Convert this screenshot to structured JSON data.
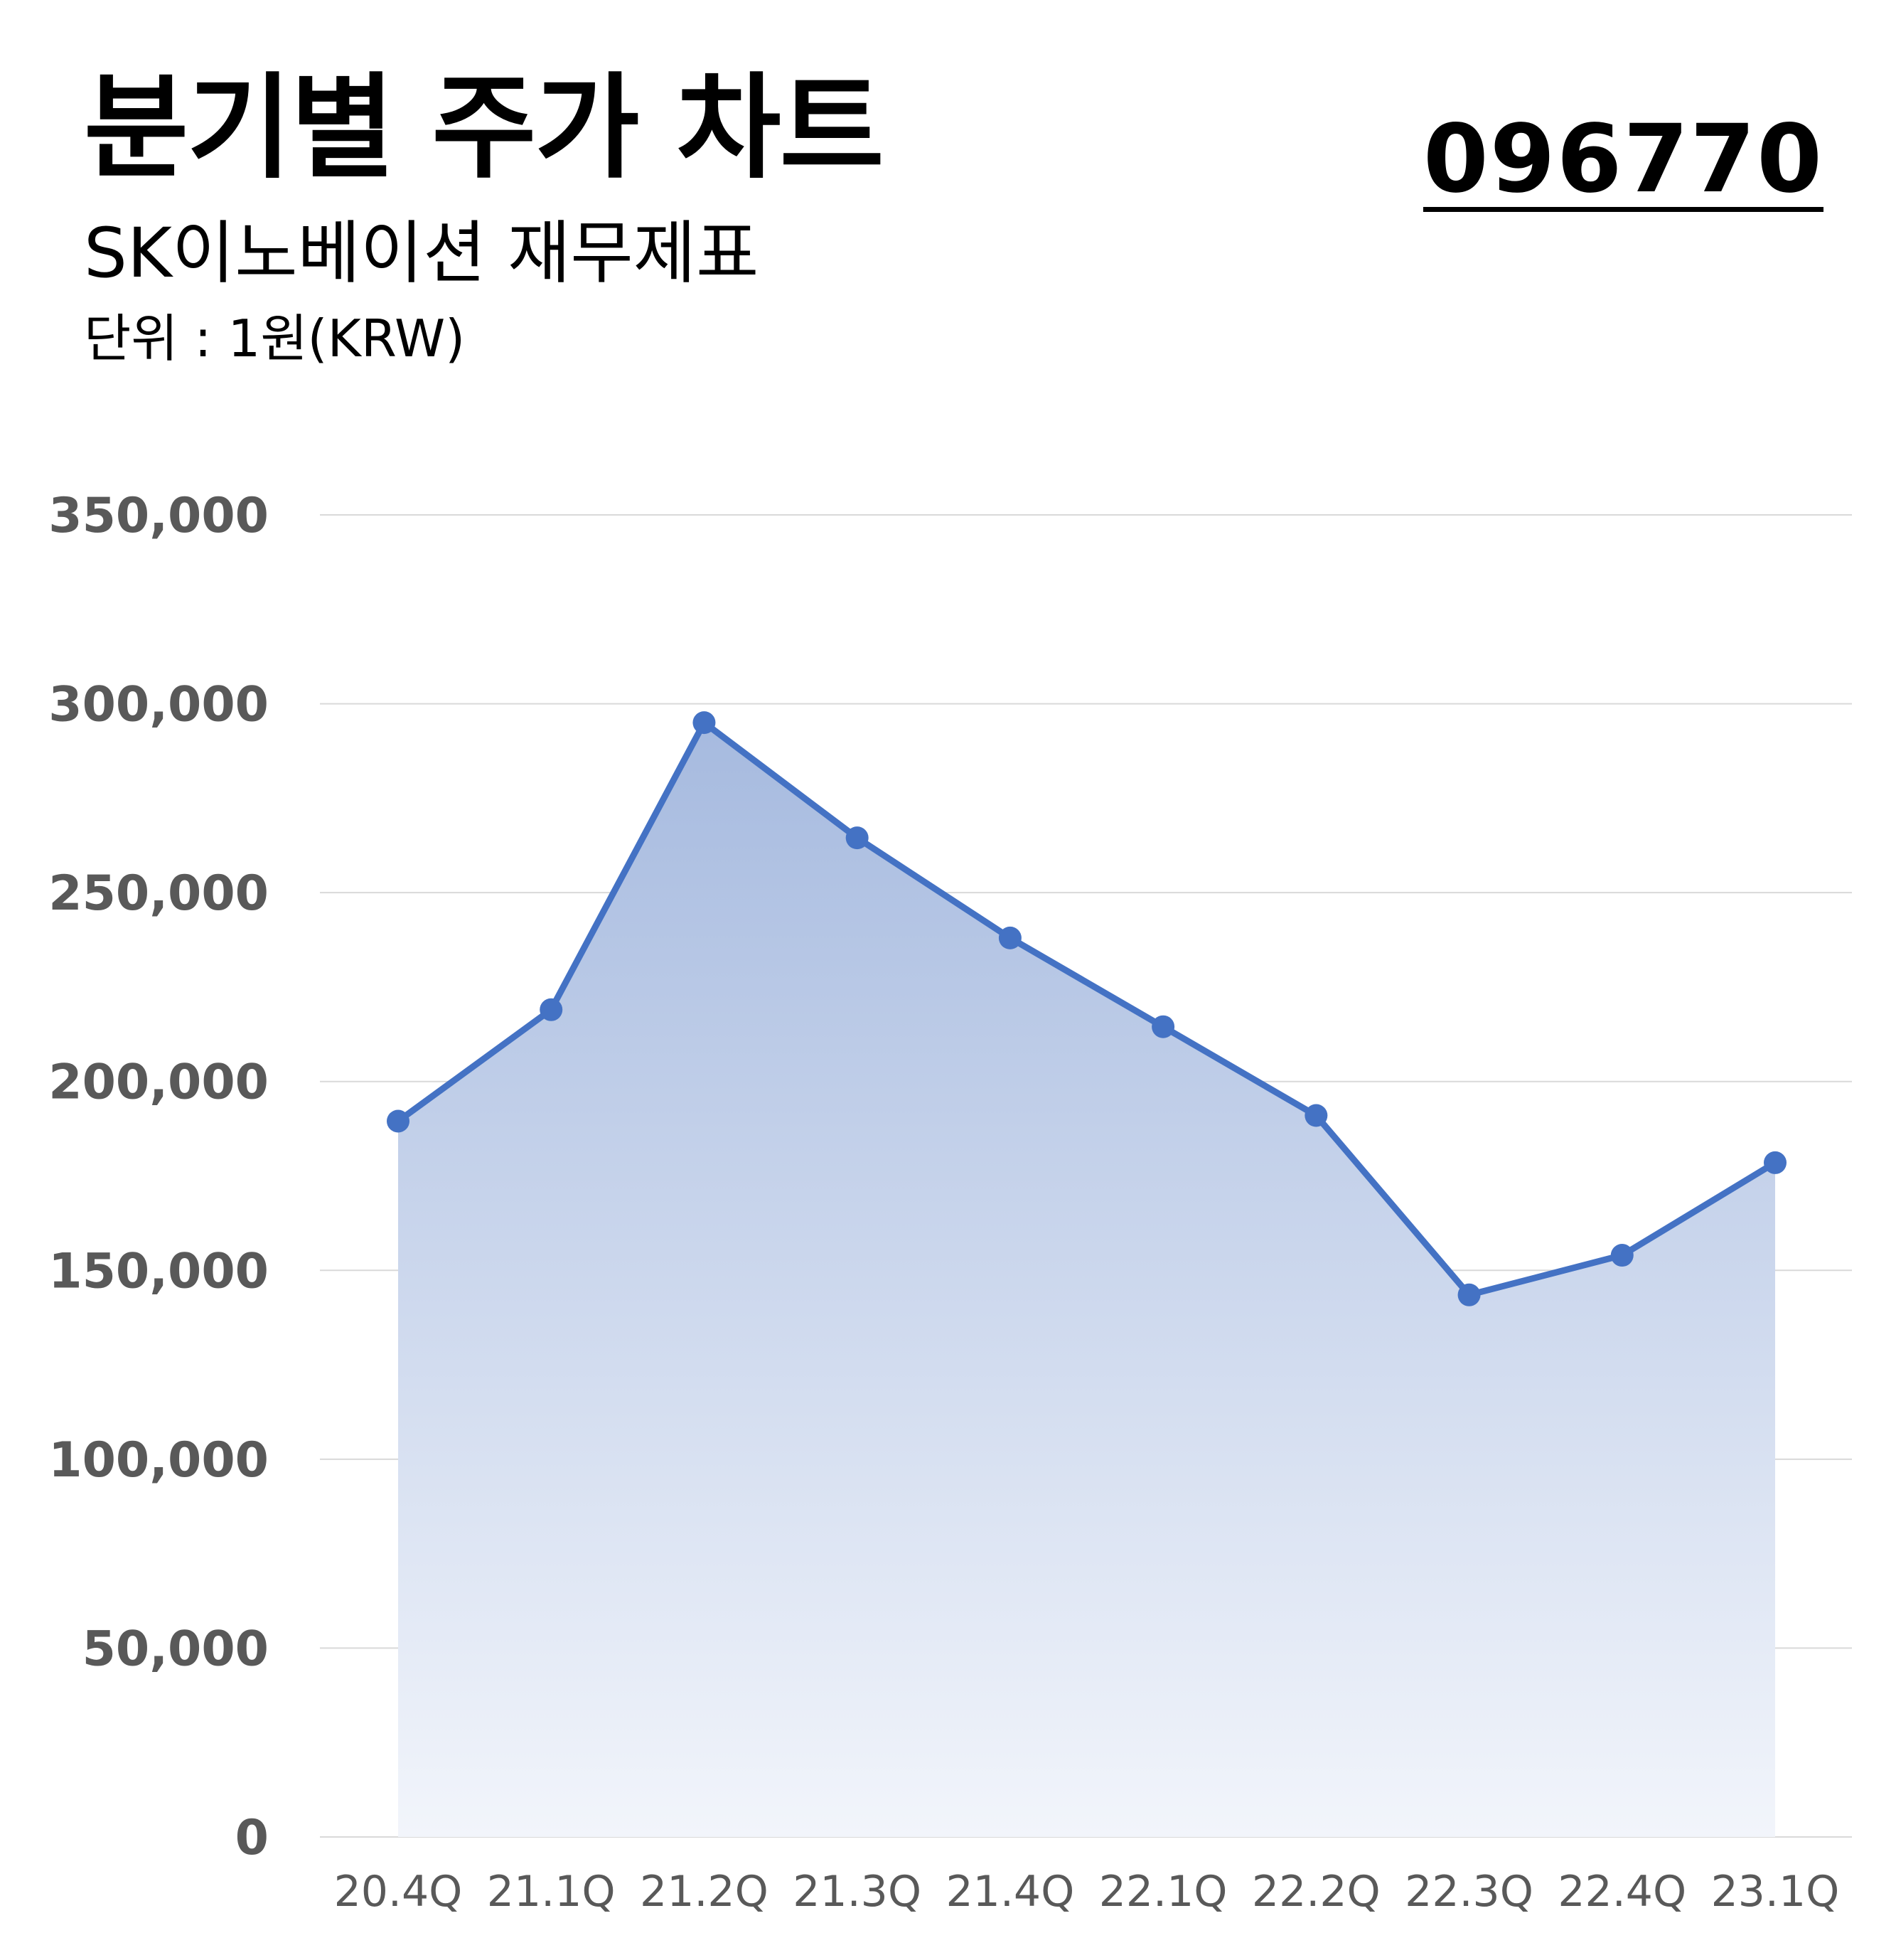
{
  "header": {
    "title": "분기별 주가 차트",
    "subtitle": "SK이노베이션 재무제표",
    "unit": "단위 : 1원(KRW)",
    "ticker": "096770"
  },
  "colors": {
    "line": "#4472C4",
    "area_top": "#A6BADF",
    "area_bottom": "#F2F5FB",
    "grid": "#D9D9D9",
    "tick_text": "#595959"
  },
  "chart_data": {
    "type": "area",
    "categories": [
      "20.4Q",
      "21.1Q",
      "21.2Q",
      "21.3Q",
      "21.4Q",
      "22.1Q",
      "22.2Q",
      "22.3Q",
      "22.4Q",
      "23.1Q"
    ],
    "series": [
      {
        "values": [
          189500,
          219000,
          295000,
          264500,
          238000,
          214500,
          191000,
          143500,
          154000,
          178500
        ]
      }
    ],
    "ylim": [
      0,
      350000
    ],
    "yticks": [
      0,
      50000,
      100000,
      150000,
      200000,
      250000,
      300000,
      350000
    ],
    "ytick_labels": [
      "0",
      "50,000",
      "100,000",
      "150,000",
      "200,000",
      "250,000",
      "300,000",
      "350,000"
    ],
    "grid": true,
    "legend": "none"
  }
}
